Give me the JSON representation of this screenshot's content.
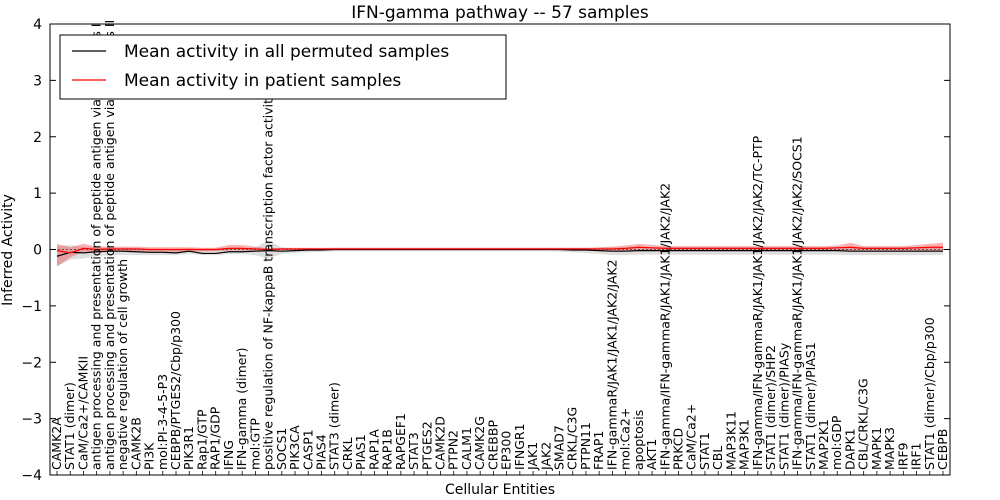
{
  "chart_data": {
    "type": "line",
    "title": "IFN-gamma pathway -- 57 samples",
    "xlabel": "Cellular Entities",
    "ylabel": "Inferred Activity",
    "ylim": [
      -4,
      4
    ],
    "yticks": [
      -4,
      -3,
      -2,
      -1,
      0,
      1,
      2,
      3,
      4
    ],
    "ytick_labels": [
      "−4",
      "−3",
      "−2",
      "−1",
      "0",
      "1",
      "2",
      "3",
      "4"
    ],
    "legend": {
      "placement": "top-left"
    },
    "categories": [
      "CAMK2A",
      "STAT1 (dimer)",
      "CaM/Ca2+/CAMKII",
      "antigen processing and presentation of peptide antigen via MHC class I",
      "antigen processing and presentation of peptide antigen via MHC class II",
      "negative regulation of cell growth",
      "CAMK2B",
      "PI3K",
      "mol:PI-3-4-5-P3",
      "CEBPB/PTGES2/Cbp/p300",
      "PIK3R1",
      "Rap1/GTP",
      "RAP1/GDP",
      "IFNG",
      "IFN-gamma (dimer)",
      "mol:GTP",
      "positive regulation of NF-kappaB transcription factor activity",
      "SOCS1",
      "PIK3CA",
      "CASP1",
      "PIAS4",
      "STAT3 (dimer)",
      "CRKL",
      "PIAS1",
      "RAP1A",
      "RAP1B",
      "RAPGEF1",
      "STAT3",
      "PTGES2",
      "CAMK2D",
      "PTPN2",
      "CALM1",
      "CAMK2G",
      "CREBBP",
      "EP300",
      "IFNGR1",
      "JAK1",
      "JAK2",
      "SMAD7",
      "CRKL/C3G",
      "PTPN11",
      "FRAP1",
      "IFN-gammaR/JAK1/JAK1/JAK2/JAK2",
      "mol:Ca2+",
      "apoptosis",
      "AKT1",
      "IFN-gamma/IFN-gammaR/JAK1/JAK1/JAK2/JAK2",
      "PRKCD",
      "CaM/Ca2+",
      "STAT1",
      "CBL",
      "MAP3K11",
      "MAP3K1",
      "IFN-gamma/IFN-gammaR/JAK1/JAK1/JAK2/JAK2/TC-PTP",
      "STAT1 (dimer)/SHP2",
      "STAT1 (dimer)/PIASy",
      "IFN-gamma/IFN-gammaR/JAK1/JAK1/JAK2/JAK2/SOCS1",
      "STAT1 (dimer)/PIAS1",
      "MAP2K1",
      "mol:GDP",
      "DAPK1",
      "CBL/CRKL/C3G",
      "MAPK1",
      "MAPK3",
      "IRF9",
      "IRF1",
      "STAT1 (dimer)/Cbp/p300",
      "CEBPB"
    ],
    "series": [
      {
        "name": "Mean activity in all permuted samples",
        "color": "#000000",
        "values": [
          -0.12,
          -0.05,
          -0.06,
          -0.04,
          -0.03,
          -0.03,
          -0.04,
          -0.05,
          -0.05,
          -0.06,
          -0.03,
          -0.07,
          -0.07,
          -0.04,
          -0.04,
          -0.03,
          -0.02,
          -0.03,
          -0.02,
          -0.01,
          -0.01,
          0,
          0,
          0,
          0,
          0,
          0,
          0,
          0,
          0,
          0,
          0,
          0,
          0,
          0,
          0,
          0,
          0,
          0,
          -0.01,
          -0.01,
          -0.02,
          -0.03,
          -0.03,
          -0.02,
          -0.02,
          -0.02,
          -0.02,
          -0.02,
          -0.02,
          -0.02,
          -0.02,
          -0.02,
          -0.02,
          -0.02,
          -0.02,
          -0.02,
          -0.02,
          -0.02,
          -0.02,
          -0.03,
          -0.03,
          -0.03,
          -0.03,
          -0.03,
          -0.03,
          -0.03,
          -0.03
        ],
        "lower": [
          -0.3,
          -0.18,
          -0.16,
          -0.12,
          -0.1,
          -0.1,
          -0.1,
          -0.1,
          -0.1,
          -0.1,
          -0.08,
          -0.1,
          -0.1,
          -0.08,
          -0.08,
          -0.1,
          -0.16,
          -0.08,
          -0.06,
          -0.05,
          -0.04,
          -0.03,
          -0.03,
          -0.03,
          -0.03,
          -0.03,
          -0.03,
          -0.03,
          -0.03,
          -0.03,
          -0.03,
          -0.03,
          -0.03,
          -0.03,
          -0.03,
          -0.03,
          -0.03,
          -0.03,
          -0.04,
          -0.05,
          -0.06,
          -0.08,
          -0.1,
          -0.1,
          -0.09,
          -0.09,
          -0.09,
          -0.09,
          -0.09,
          -0.09,
          -0.09,
          -0.09,
          -0.09,
          -0.09,
          -0.09,
          -0.09,
          -0.09,
          -0.09,
          -0.09,
          -0.09,
          -0.1,
          -0.1,
          -0.1,
          -0.1,
          -0.1,
          -0.1,
          -0.1,
          -0.1
        ],
        "upper": [
          0.06,
          0.08,
          0.04,
          0.04,
          0.03,
          0.03,
          0.02,
          0.01,
          0.01,
          0.01,
          0.02,
          0.0,
          0.0,
          0.02,
          0.02,
          0.04,
          0.16,
          0.03,
          0.02,
          0.02,
          0.02,
          0.03,
          0.03,
          0.03,
          0.03,
          0.03,
          0.03,
          0.03,
          0.03,
          0.03,
          0.03,
          0.03,
          0.03,
          0.03,
          0.03,
          0.03,
          0.03,
          0.03,
          0.03,
          0.03,
          0.03,
          0.03,
          0.04,
          0.04,
          0.04,
          0.04,
          0.04,
          0.04,
          0.04,
          0.04,
          0.04,
          0.04,
          0.04,
          0.04,
          0.04,
          0.04,
          0.04,
          0.04,
          0.04,
          0.04,
          0.04,
          0.04,
          0.04,
          0.04,
          0.04,
          0.04,
          0.04,
          0.04
        ]
      },
      {
        "name": "Mean activity in patient samples",
        "color": "#ff0000",
        "values": [
          -0.02,
          -0.06,
          0.02,
          0,
          0.01,
          0.01,
          0.01,
          0,
          0,
          0,
          0,
          0,
          0,
          0.02,
          0.02,
          0.01,
          0,
          0.01,
          0.01,
          0.01,
          0.01,
          0.01,
          0.01,
          0.01,
          0.01,
          0.01,
          0.01,
          0.01,
          0.01,
          0.01,
          0.01,
          0.01,
          0.01,
          0.01,
          0.01,
          0.01,
          0.01,
          0.01,
          0.01,
          0.01,
          0.01,
          0.01,
          0.01,
          0.02,
          0.04,
          0.03,
          0.02,
          0.02,
          0.02,
          0.02,
          0.02,
          0.02,
          0.02,
          0.02,
          0.02,
          0.02,
          0.02,
          0.02,
          0.02,
          0.03,
          0.04,
          0.02,
          0.02,
          0.02,
          0.02,
          0.03,
          0.04,
          0.04
        ],
        "lower": [
          -0.3,
          -0.14,
          -0.04,
          -0.05,
          -0.04,
          -0.04,
          -0.03,
          -0.04,
          -0.04,
          -0.04,
          -0.04,
          -0.03,
          -0.03,
          -0.02,
          -0.02,
          -0.02,
          -0.02,
          -0.01,
          -0.01,
          -0.01,
          -0.01,
          -0.01,
          -0.01,
          -0.01,
          -0.01,
          -0.01,
          -0.01,
          -0.01,
          -0.01,
          -0.01,
          -0.01,
          -0.01,
          -0.01,
          -0.01,
          -0.01,
          -0.01,
          -0.01,
          -0.01,
          -0.01,
          -0.01,
          -0.01,
          -0.02,
          -0.03,
          -0.02,
          -0.02,
          -0.02,
          -0.02,
          -0.02,
          -0.02,
          -0.02,
          -0.02,
          -0.02,
          -0.02,
          -0.02,
          -0.02,
          -0.02,
          -0.02,
          -0.02,
          -0.02,
          -0.02,
          -0.02,
          -0.02,
          -0.02,
          -0.02,
          -0.02,
          -0.02,
          -0.02,
          -0.02
        ],
        "upper": [
          0.1,
          0.04,
          0.1,
          0.05,
          0.05,
          0.05,
          0.05,
          0.04,
          0.04,
          0.04,
          0.04,
          0.03,
          0.03,
          0.08,
          0.08,
          0.05,
          0.02,
          0.03,
          0.03,
          0.03,
          0.03,
          0.03,
          0.03,
          0.03,
          0.03,
          0.03,
          0.03,
          0.03,
          0.03,
          0.03,
          0.03,
          0.03,
          0.03,
          0.03,
          0.03,
          0.03,
          0.03,
          0.03,
          0.03,
          0.03,
          0.03,
          0.04,
          0.05,
          0.07,
          0.1,
          0.08,
          0.06,
          0.06,
          0.06,
          0.06,
          0.06,
          0.06,
          0.06,
          0.06,
          0.06,
          0.06,
          0.06,
          0.06,
          0.06,
          0.07,
          0.12,
          0.06,
          0.06,
          0.06,
          0.06,
          0.08,
          0.1,
          0.12
        ]
      }
    ]
  }
}
